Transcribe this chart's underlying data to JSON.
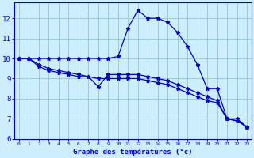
{
  "xlabel": "Graphe des températures (°c)",
  "bg_color": "#cceeff",
  "line_color": "#0000cc",
  "grid_color": "#99cccc",
  "axis_color": "#0000cc",
  "label_color": "#0000cc",
  "xlim": [
    -0.5,
    23.5
  ],
  "ylim": [
    6.0,
    12.8
  ],
  "xticks": [
    0,
    1,
    2,
    3,
    4,
    5,
    6,
    7,
    8,
    9,
    10,
    11,
    12,
    13,
    14,
    15,
    16,
    17,
    18,
    19,
    20,
    21,
    22,
    23
  ],
  "yticks": [
    6,
    7,
    8,
    9,
    10,
    11,
    12
  ],
  "line1_x": [
    0,
    1,
    2,
    3,
    4,
    5,
    6,
    7,
    8,
    9,
    10,
    11,
    12,
    13,
    14,
    15,
    16,
    17,
    18,
    19,
    20,
    21,
    22,
    23
  ],
  "line1_y": [
    10.0,
    10.0,
    10.0,
    10.0,
    10.0,
    10.0,
    10.0,
    10.0,
    10.0,
    10.0,
    10.1,
    11.5,
    12.4,
    12.0,
    12.0,
    11.8,
    11.3,
    10.6,
    9.7,
    8.5,
    8.5,
    7.0,
    7.0,
    6.6
  ],
  "line2_x": [
    0,
    1,
    2,
    3,
    4,
    5,
    6,
    7,
    8,
    9,
    10,
    11,
    12,
    13,
    14,
    15,
    16,
    17,
    18,
    19,
    20,
    21,
    22,
    23
  ],
  "line2_y": [
    10.0,
    10.0,
    9.7,
    9.5,
    9.4,
    9.3,
    9.2,
    9.1,
    8.6,
    9.2,
    9.2,
    9.2,
    9.2,
    9.1,
    9.0,
    8.9,
    8.7,
    8.5,
    8.3,
    8.1,
    7.9,
    7.0,
    6.9,
    6.6
  ],
  "line3_x": [
    0,
    1,
    2,
    3,
    4,
    5,
    6,
    7,
    8,
    9,
    10,
    11,
    12,
    13,
    14,
    15,
    16,
    17,
    18,
    19,
    20,
    21,
    22,
    23
  ],
  "line3_y": [
    10.0,
    10.0,
    9.6,
    9.4,
    9.3,
    9.2,
    9.1,
    9.1,
    9.0,
    9.0,
    9.0,
    9.0,
    9.0,
    8.9,
    8.8,
    8.7,
    8.5,
    8.3,
    8.1,
    7.9,
    7.8,
    7.0,
    6.9,
    6.6
  ]
}
